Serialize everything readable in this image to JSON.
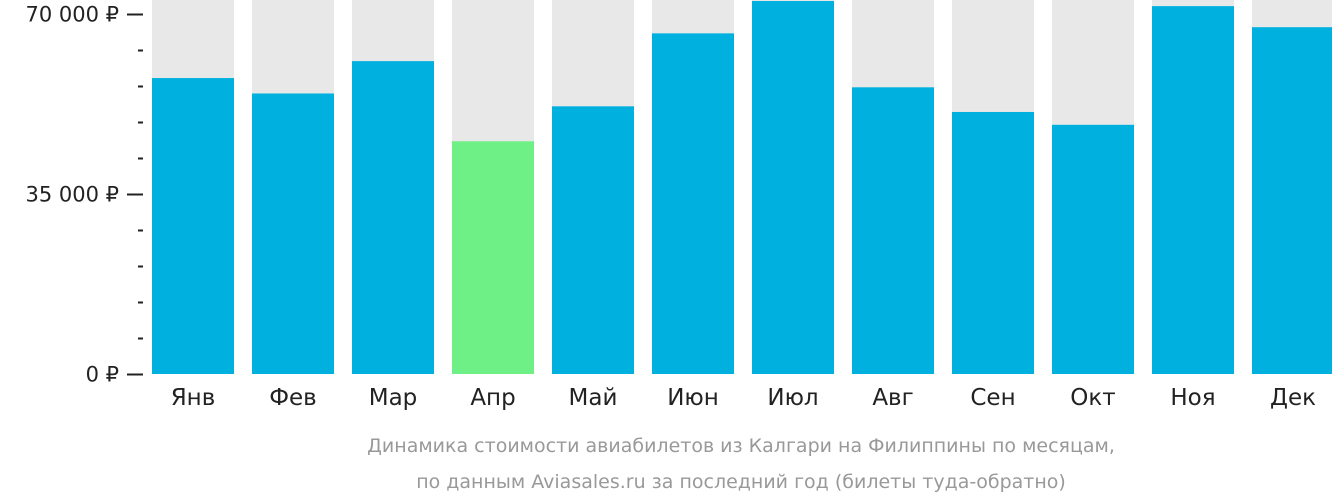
{
  "chart_data": {
    "type": "bar",
    "categories": [
      "Янв",
      "Фев",
      "Мар",
      "Апр",
      "Май",
      "Июн",
      "Июл",
      "Авг",
      "Сен",
      "Окт",
      "Ноя",
      "Дек"
    ],
    "values": [
      57600,
      54600,
      60900,
      45300,
      52100,
      66300,
      72600,
      55800,
      51000,
      48500,
      71600,
      67500
    ],
    "highlight_index": 3,
    "ylim": [
      0,
      72600
    ],
    "y_ticks": [
      {
        "value": 0,
        "label": "0 ₽"
      },
      {
        "value": 35000,
        "label": "35 000 ₽"
      },
      {
        "value": 70000,
        "label": "70 000 ₽"
      }
    ],
    "y_minor_step": 7000,
    "grid": false,
    "colors": {
      "bar": "#00b0de",
      "highlight": "#6ef087",
      "bar_background": "#e8e8e8",
      "axis": "#222222",
      "caption": "#999999"
    },
    "caption_lines": [
      "Динамика стоимости авиабилетов из Калгари на Филиппины по месяцам,",
      "по данным Aviasales.ru за последний год (билеты туда-обратно)"
    ]
  }
}
